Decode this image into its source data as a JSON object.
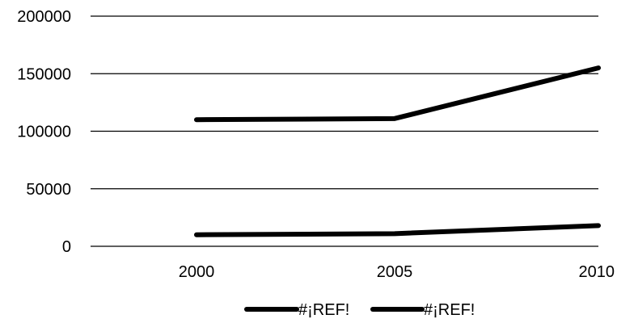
{
  "chart_data": {
    "type": "line",
    "x": [
      "2000",
      "2005",
      "2010"
    ],
    "series": [
      {
        "name": "#¡REF!",
        "values": [
          110000,
          111000,
          155000
        ]
      },
      {
        "name": "#¡REF!",
        "values": [
          10000,
          11000,
          18000
        ]
      }
    ],
    "y_ticks": [
      "0",
      "50000",
      "100000",
      "150000",
      "200000"
    ],
    "ylim": [
      0,
      200000
    ],
    "grid": "horizontal",
    "legend": "bottom-center",
    "line_color": "#000000"
  }
}
